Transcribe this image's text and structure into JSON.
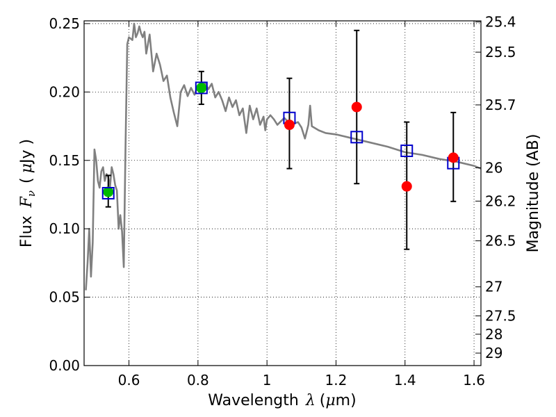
{
  "chart_data": {
    "type": "scatter",
    "title": "",
    "xlabel_text": "Wavelength",
    "xlabel_symbol": "λ",
    "xlabel_unit_open": "(",
    "xlabel_unit_mu": "μ",
    "xlabel_unit_rest": "m)",
    "ylabel_text": "Flux",
    "ylabel_symbol": "F",
    "ylabel_subscript": "ν",
    "ylabel_unit_open": "(",
    "ylabel_unit_mu": "μ",
    "ylabel_unit_rest": "Jy )",
    "y2label": "Magnitude (AB)",
    "xlim": [
      0.47,
      1.62
    ],
    "ylim": [
      0.0,
      0.252
    ],
    "grid": true,
    "x_ticks": [
      {
        "value": 0.6,
        "label": "0.6"
      },
      {
        "value": 0.8,
        "label": "0.8"
      },
      {
        "value": 1.0,
        "label": "1"
      },
      {
        "value": 1.2,
        "label": "1.2"
      },
      {
        "value": 1.4,
        "label": "1.4"
      },
      {
        "value": 1.6,
        "label": "1.6"
      }
    ],
    "y_ticks": [
      {
        "value": 0.0,
        "label": "0.00"
      },
      {
        "value": 0.05,
        "label": "0.05"
      },
      {
        "value": 0.1,
        "label": "0.10"
      },
      {
        "value": 0.15,
        "label": "0.15"
      },
      {
        "value": 0.2,
        "label": "0.20"
      },
      {
        "value": 0.25,
        "label": "0.25"
      }
    ],
    "y2_ticks": [
      {
        "mag": 25.4,
        "label": "25.4"
      },
      {
        "mag": 25.5,
        "label": "25.5"
      },
      {
        "mag": 25.7,
        "label": "25.7"
      },
      {
        "mag": 26.0,
        "label": "26"
      },
      {
        "mag": 26.2,
        "label": "26.2"
      },
      {
        "mag": 26.5,
        "label": "26.5"
      },
      {
        "mag": 27.0,
        "label": "27"
      },
      {
        "mag": 27.5,
        "label": "27.5"
      },
      {
        "mag": 28.0,
        "label": "28"
      },
      {
        "mag": 29.0,
        "label": "29"
      }
    ],
    "model_spectrum": {
      "color": "#808080",
      "x": [
        0.475,
        0.48,
        0.485,
        0.49,
        0.495,
        0.5,
        0.505,
        0.51,
        0.515,
        0.52,
        0.525,
        0.53,
        0.535,
        0.54,
        0.545,
        0.55,
        0.555,
        0.56,
        0.565,
        0.57,
        0.575,
        0.58,
        0.585,
        0.59,
        0.595,
        0.6,
        0.61,
        0.615,
        0.62,
        0.625,
        0.63,
        0.635,
        0.64,
        0.645,
        0.65,
        0.66,
        0.67,
        0.68,
        0.69,
        0.7,
        0.71,
        0.72,
        0.73,
        0.74,
        0.75,
        0.76,
        0.77,
        0.78,
        0.79,
        0.8,
        0.81,
        0.82,
        0.83,
        0.84,
        0.85,
        0.86,
        0.87,
        0.88,
        0.89,
        0.9,
        0.91,
        0.92,
        0.93,
        0.94,
        0.95,
        0.96,
        0.97,
        0.98,
        0.99,
        0.995,
        1.0,
        1.01,
        1.02,
        1.03,
        1.05,
        1.07,
        1.09,
        1.1,
        1.11,
        1.12,
        1.125,
        1.13,
        1.15,
        1.17,
        1.2,
        1.25,
        1.3,
        1.35,
        1.4,
        1.45,
        1.5,
        1.55,
        1.6,
        1.62
      ],
      "y": [
        0.055,
        0.075,
        0.1,
        0.065,
        0.09,
        0.158,
        0.15,
        0.135,
        0.13,
        0.142,
        0.145,
        0.135,
        0.14,
        0.138,
        0.13,
        0.145,
        0.14,
        0.132,
        0.128,
        0.1,
        0.11,
        0.098,
        0.072,
        0.16,
        0.235,
        0.24,
        0.238,
        0.25,
        0.24,
        0.243,
        0.248,
        0.243,
        0.24,
        0.244,
        0.228,
        0.242,
        0.215,
        0.228,
        0.22,
        0.208,
        0.212,
        0.196,
        0.185,
        0.175,
        0.2,
        0.205,
        0.197,
        0.203,
        0.198,
        0.205,
        0.204,
        0.207,
        0.202,
        0.206,
        0.196,
        0.2,
        0.194,
        0.186,
        0.196,
        0.189,
        0.194,
        0.183,
        0.188,
        0.17,
        0.19,
        0.18,
        0.188,
        0.176,
        0.182,
        0.172,
        0.18,
        0.183,
        0.18,
        0.176,
        0.181,
        0.176,
        0.178,
        0.174,
        0.166,
        0.176,
        0.19,
        0.175,
        0.172,
        0.17,
        0.169,
        0.166,
        0.163,
        0.16,
        0.156,
        0.154,
        0.151,
        0.149,
        0.146,
        0.144
      ]
    },
    "series": [
      {
        "color": "#ff0000",
        "marker": "circle",
        "points": [
          {
            "x": 1.065,
            "y": 0.176,
            "yerr_low": 0.144,
            "yerr_high": 0.21
          },
          {
            "x": 1.26,
            "y": 0.189,
            "yerr_low": 0.133,
            "yerr_high": 0.245
          },
          {
            "x": 1.405,
            "y": 0.131,
            "yerr_low": 0.085,
            "yerr_high": 0.178
          },
          {
            "x": 1.54,
            "y": 0.152,
            "yerr_low": 0.12,
            "yerr_high": 0.185
          }
        ]
      },
      {
        "color": "#00bb00",
        "marker": "circle",
        "points": [
          {
            "x": 0.54,
            "y": 0.127,
            "yerr_low": 0.116,
            "yerr_high": 0.139
          },
          {
            "x": 0.81,
            "y": 0.203,
            "yerr_low": 0.191,
            "yerr_high": 0.215
          }
        ]
      },
      {
        "color": "#0000cc",
        "marker": "open-square",
        "points": [
          {
            "x": 0.54,
            "y": 0.126
          },
          {
            "x": 0.81,
            "y": 0.203
          },
          {
            "x": 1.065,
            "y": 0.181
          },
          {
            "x": 1.26,
            "y": 0.167
          },
          {
            "x": 1.405,
            "y": 0.157
          },
          {
            "x": 1.54,
            "y": 0.148
          }
        ]
      }
    ]
  }
}
